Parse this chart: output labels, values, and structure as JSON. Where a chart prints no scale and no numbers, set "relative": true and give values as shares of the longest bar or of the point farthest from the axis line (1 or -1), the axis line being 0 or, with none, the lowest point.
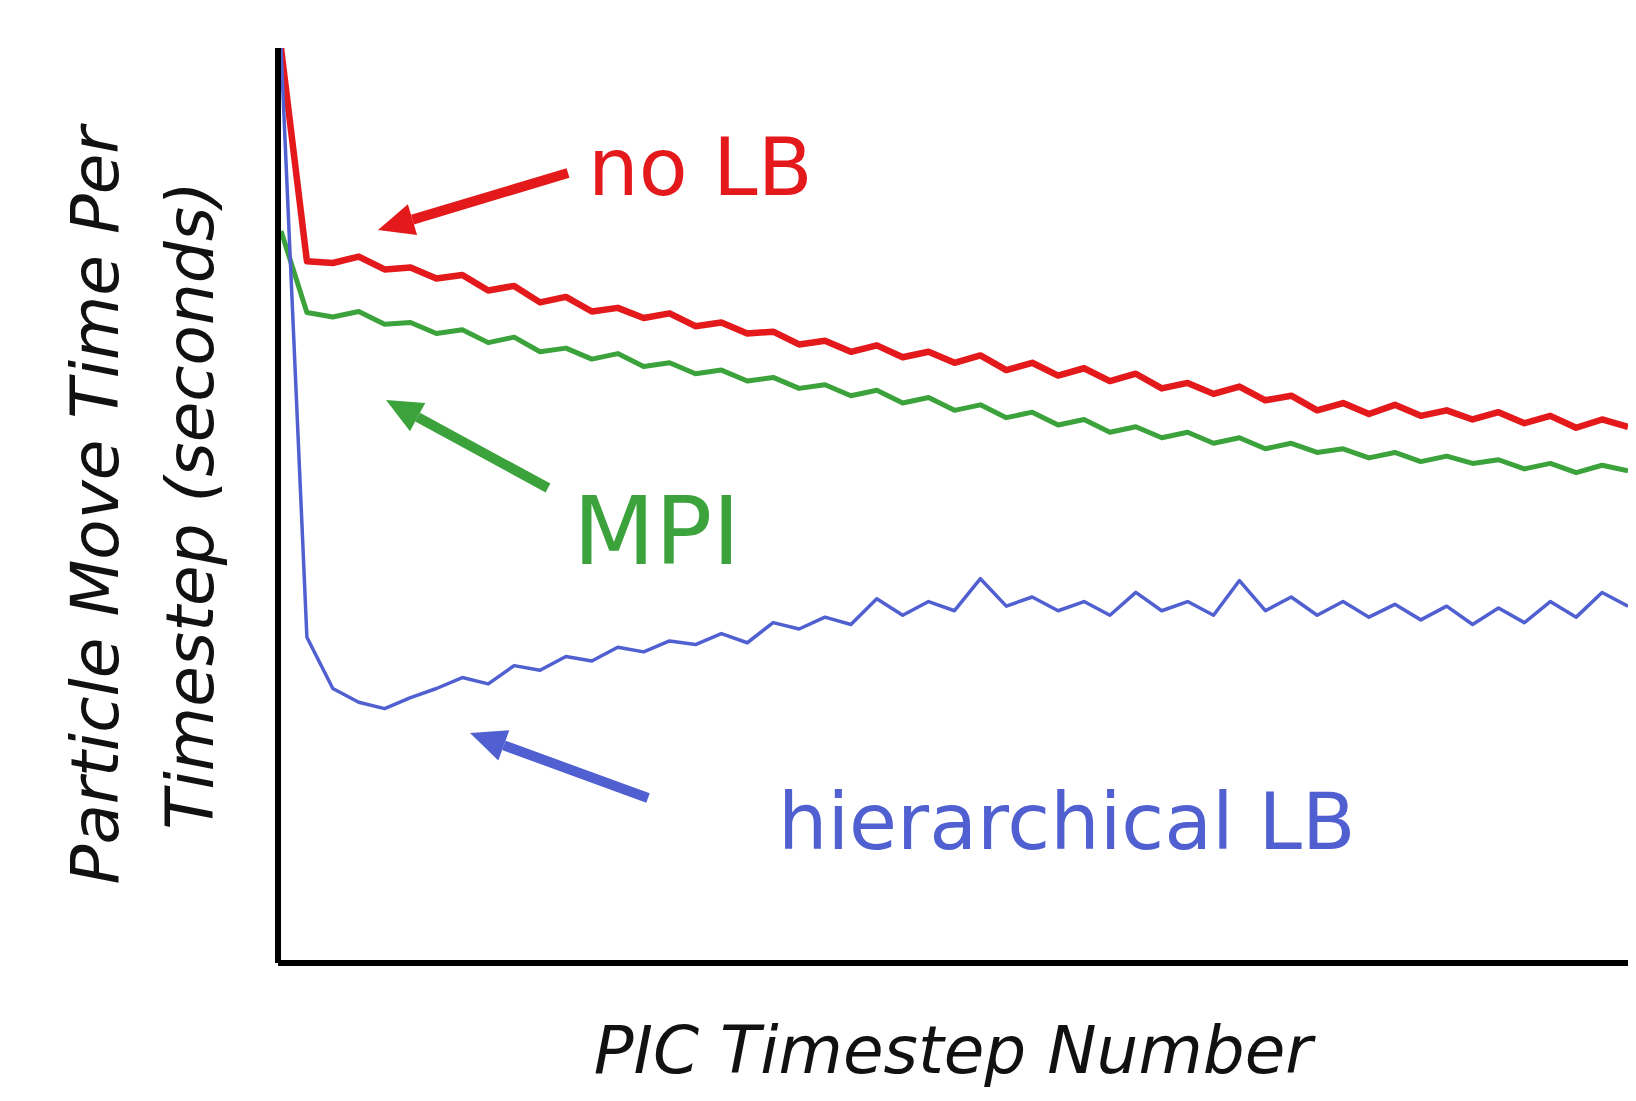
{
  "chart_data": {
    "type": "line",
    "xlabel": "PIC Timestep Number",
    "ylabel": "Particle Move Time Per Timestep (seconds)",
    "relative": true,
    "legend": "top",
    "marker": "none",
    "line_style": "solid",
    "categories": [
      null,
      null,
      null,
      null,
      null,
      null,
      null,
      null,
      null,
      null,
      null,
      null,
      null,
      null,
      null,
      null,
      null,
      null,
      null,
      null,
      null,
      null,
      null,
      null,
      null,
      null,
      null,
      null,
      null,
      null,
      null,
      null,
      null,
      null,
      null,
      null,
      null,
      null,
      null,
      null,
      null,
      null,
      null,
      null,
      null,
      null,
      null,
      null,
      null,
      null,
      null,
      null,
      null
    ],
    "series": [
      {
        "name": "no LB",
        "color": "#e3191c",
        "values": [
          1.0,
          0.767,
          0.765,
          0.772,
          0.758,
          0.76,
          0.748,
          0.752,
          0.735,
          0.74,
          0.722,
          0.728,
          0.712,
          0.716,
          0.705,
          0.71,
          0.696,
          0.7,
          0.688,
          0.69,
          0.676,
          0.68,
          0.668,
          0.675,
          0.662,
          0.668,
          0.656,
          0.664,
          0.648,
          0.656,
          0.642,
          0.65,
          0.636,
          0.644,
          0.628,
          0.634,
          0.622,
          0.63,
          0.615,
          0.62,
          0.604,
          0.612,
          0.6,
          0.61,
          0.598,
          0.604,
          0.594,
          0.602,
          0.59,
          0.598,
          0.585,
          0.594,
          0.586
        ]
      },
      {
        "name": "MPI",
        "color": "#3ca23c",
        "values": [
          0.8,
          0.711,
          0.706,
          0.712,
          0.698,
          0.7,
          0.688,
          0.692,
          0.678,
          0.684,
          0.668,
          0.672,
          0.66,
          0.666,
          0.652,
          0.656,
          0.644,
          0.648,
          0.636,
          0.64,
          0.628,
          0.632,
          0.62,
          0.626,
          0.612,
          0.618,
          0.604,
          0.61,
          0.596,
          0.602,
          0.588,
          0.594,
          0.58,
          0.586,
          0.574,
          0.58,
          0.568,
          0.574,
          0.562,
          0.568,
          0.558,
          0.562,
          0.552,
          0.558,
          0.548,
          0.554,
          0.546,
          0.55,
          0.54,
          0.546,
          0.536,
          0.544,
          0.538
        ]
      },
      {
        "name": "hierarchical LB",
        "color": "#5060d0",
        "values": [
          1.0,
          0.356,
          0.3,
          0.285,
          0.278,
          0.29,
          0.3,
          0.312,
          0.305,
          0.325,
          0.32,
          0.335,
          0.33,
          0.345,
          0.34,
          0.352,
          0.348,
          0.36,
          0.35,
          0.372,
          0.365,
          0.378,
          0.37,
          0.398,
          0.38,
          0.395,
          0.385,
          0.42,
          0.39,
          0.4,
          0.385,
          0.395,
          0.38,
          0.405,
          0.385,
          0.395,
          0.38,
          0.418,
          0.385,
          0.4,
          0.38,
          0.395,
          0.378,
          0.392,
          0.375,
          0.39,
          0.37,
          0.388,
          0.372,
          0.395,
          0.378,
          0.405,
          0.39
        ]
      }
    ]
  }
}
